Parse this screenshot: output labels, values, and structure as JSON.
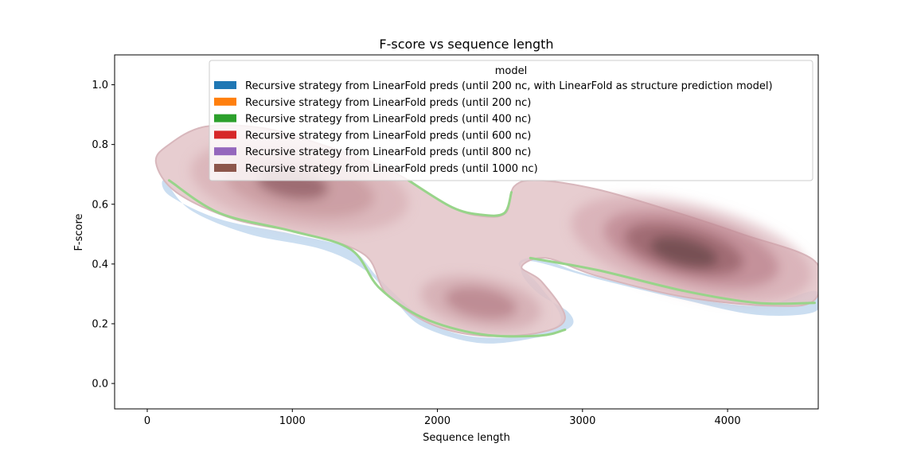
{
  "chart_data": {
    "type": "kde-contour",
    "title": "F-score vs sequence length",
    "xlabel": "Sequence length",
    "ylabel": "F-score",
    "xlim": [
      -225,
      4625
    ],
    "ylim": [
      -0.085,
      1.1
    ],
    "xticks": [
      0,
      1000,
      2000,
      3000,
      4000
    ],
    "xtick_labels": [
      "0",
      "1000",
      "2000",
      "3000",
      "4000"
    ],
    "yticks": [
      0.0,
      0.2,
      0.4,
      0.6,
      0.8,
      1.0
    ],
    "ytick_labels": [
      "0.0",
      "0.2",
      "0.4",
      "0.6",
      "0.8",
      "1.0"
    ],
    "grid": false,
    "legend": {
      "title": "model",
      "placement": "upper-right",
      "entries": [
        {
          "label": "Recursive strategy from LinearFold preds (until 200 nc, with LinearFold as structure prediction model)",
          "color": "#1f77b4"
        },
        {
          "label": "Recursive strategy from LinearFold preds (until 200 nc)",
          "color": "#ff7f0e"
        },
        {
          "label": "Recursive strategy from LinearFold preds (until 400 nc)",
          "color": "#2ca02c"
        },
        {
          "label": "Recursive strategy from LinearFold preds (until 600 nc)",
          "color": "#d62728"
        },
        {
          "label": "Recursive strategy from LinearFold preds (until 800 nc)",
          "color": "#9467bd"
        },
        {
          "label": "Recursive strategy from LinearFold preds (until 1000 nc)",
          "color": "#8c564b"
        }
      ]
    },
    "density_modes": [
      {
        "x": 1050,
        "y": 0.66
      },
      {
        "x": 2300,
        "y": 0.27
      },
      {
        "x": 3700,
        "y": 0.45
      }
    ],
    "outer_contour": [
      [
        60,
        0.74
      ],
      [
        150,
        0.8
      ],
      [
        400,
        0.86
      ],
      [
        800,
        0.855
      ],
      [
        1200,
        0.8
      ],
      [
        1600,
        0.73
      ],
      [
        1800,
        0.68
      ],
      [
        2100,
        0.59
      ],
      [
        2300,
        0.56
      ],
      [
        2470,
        0.57
      ],
      [
        2530,
        0.66
      ],
      [
        2700,
        0.68
      ],
      [
        3100,
        0.65
      ],
      [
        3600,
        0.58
      ],
      [
        4100,
        0.5
      ],
      [
        4600,
        0.41
      ],
      [
        4600,
        0.28
      ],
      [
        4300,
        0.26
      ],
      [
        3700,
        0.29
      ],
      [
        3100,
        0.36
      ],
      [
        2750,
        0.42
      ],
      [
        2580,
        0.39
      ],
      [
        2720,
        0.34
      ],
      [
        2880,
        0.22
      ],
      [
        2700,
        0.17
      ],
      [
        2300,
        0.16
      ],
      [
        1950,
        0.2
      ],
      [
        1650,
        0.3
      ],
      [
        1500,
        0.43
      ],
      [
        1100,
        0.5
      ],
      [
        600,
        0.55
      ],
      [
        200,
        0.64
      ]
    ],
    "blue_outer_contour": [
      [
        120,
        0.68
      ],
      [
        300,
        0.58
      ],
      [
        700,
        0.5
      ],
      [
        1200,
        0.45
      ],
      [
        1500,
        0.38
      ],
      [
        1700,
        0.28
      ],
      [
        1900,
        0.19
      ],
      [
        2300,
        0.135
      ],
      [
        2700,
        0.155
      ],
      [
        2920,
        0.19
      ],
      [
        2900,
        0.24
      ],
      [
        2700,
        0.3
      ],
      [
        2580,
        0.37
      ],
      [
        2640,
        0.41
      ],
      [
        3100,
        0.35
      ],
      [
        3700,
        0.28
      ],
      [
        4200,
        0.23
      ],
      [
        4600,
        0.24
      ],
      [
        4600,
        0.31
      ],
      [
        4200,
        0.26
      ],
      [
        3600,
        0.3
      ],
      [
        3000,
        0.37
      ],
      [
        2700,
        0.42
      ],
      [
        2560,
        0.4
      ],
      [
        2700,
        0.33
      ],
      [
        2850,
        0.21
      ],
      [
        2600,
        0.16
      ],
      [
        2200,
        0.16
      ],
      [
        1900,
        0.22
      ],
      [
        1600,
        0.35
      ],
      [
        1400,
        0.45
      ],
      [
        1000,
        0.5
      ],
      [
        500,
        0.55
      ],
      [
        150,
        0.63
      ]
    ],
    "green_edge_lower_left": [
      [
        150,
        0.68
      ],
      [
        500,
        0.57
      ],
      [
        1000,
        0.51
      ],
      [
        1400,
        0.45
      ],
      [
        1600,
        0.32
      ],
      [
        1900,
        0.22
      ],
      [
        2300,
        0.165
      ],
      [
        2700,
        0.16
      ],
      [
        2880,
        0.18
      ]
    ],
    "green_edge_lower_right": [
      [
        2640,
        0.42
      ],
      [
        3100,
        0.38
      ],
      [
        3700,
        0.31
      ],
      [
        4200,
        0.27
      ],
      [
        4600,
        0.27
      ]
    ],
    "green_edge_notch": [
      [
        1800,
        0.68
      ],
      [
        2100,
        0.59
      ],
      [
        2300,
        0.565
      ],
      [
        2460,
        0.57
      ],
      [
        2510,
        0.64
      ]
    ]
  }
}
